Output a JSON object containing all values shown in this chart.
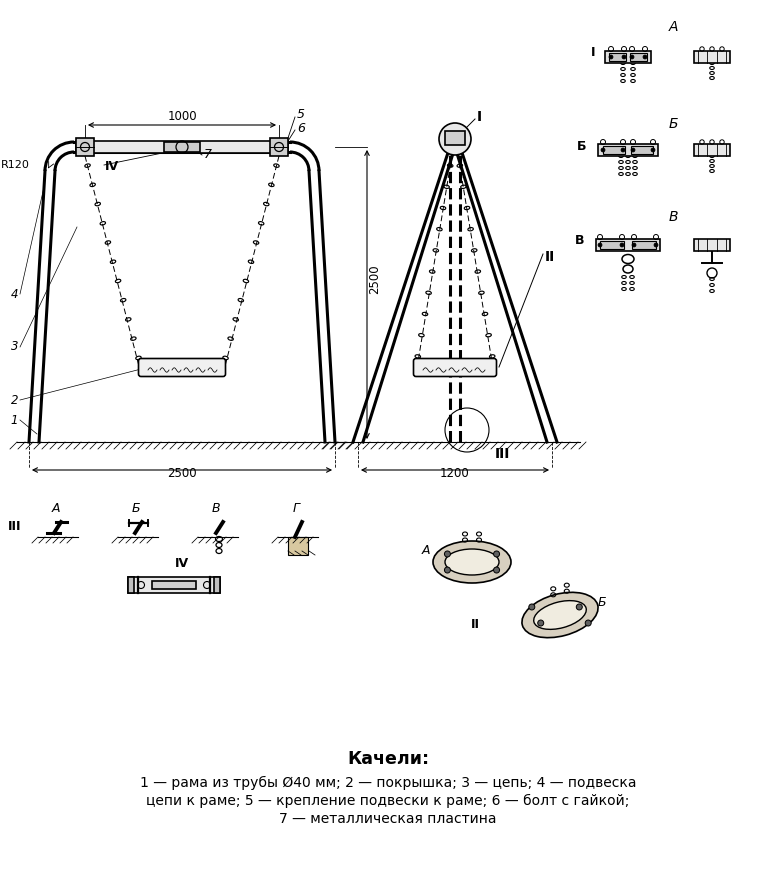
{
  "title": "Качели:",
  "legend_line1": "1 — рама из трубы Ø40 мм; 2 — покрышка; 3 — цепь; 4 — подвеска",
  "legend_line2": "цепи к раме; 5 — крепление подвески к раме; 6 — болт с гайкой;",
  "legend_line3": "7 — металлическая пластина",
  "bg_color": "#ffffff",
  "line_color": "#000000",
  "dim_2500w": "2500",
  "dim_1000": "1000",
  "dim_2500h": "2500",
  "dim_1200": "1200",
  "dim_R120": "R120"
}
